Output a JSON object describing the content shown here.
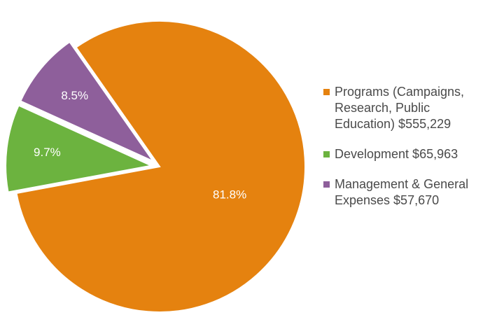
{
  "chart_data": {
    "type": "pie",
    "title": "",
    "labels": [
      "Programs (Campaigns, Research, Public Education) $555,229",
      "Development $65,963",
      "Management & General Expenses $57,670"
    ],
    "values": [
      81.8,
      9.7,
      8.5
    ],
    "value_labels": [
      "81.8%",
      "9.7%",
      "8.5%"
    ],
    "amounts": [
      555229,
      65963,
      57670
    ],
    "colors": [
      "#e5820f",
      "#6cb33f",
      "#8e5f9b"
    ],
    "exploded": [
      false,
      true,
      true
    ],
    "legend_position": "right"
  }
}
